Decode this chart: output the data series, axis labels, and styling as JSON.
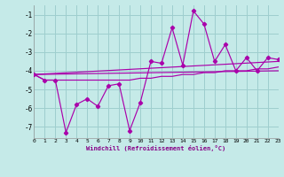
{
  "xlabel": "Windchill (Refroidissement éolien,°C)",
  "bg_color": "#c5eae8",
  "grid_color": "#9ecece",
  "line_color": "#aa00aa",
  "x_min": 0,
  "x_max": 23,
  "y_min": -7.6,
  "y_max": -0.5,
  "yticks": [
    -7,
    -6,
    -5,
    -4,
    -3,
    -2,
    -1
  ],
  "xticks": [
    0,
    1,
    2,
    3,
    4,
    5,
    6,
    7,
    8,
    9,
    10,
    11,
    12,
    13,
    14,
    15,
    16,
    17,
    18,
    19,
    20,
    21,
    22,
    23
  ],
  "series1_x": [
    0,
    1,
    2,
    3,
    4,
    5,
    6,
    7,
    8,
    9,
    10,
    11,
    12,
    13,
    14,
    15,
    16,
    17,
    18,
    19,
    20,
    21,
    22,
    23
  ],
  "series1_y": [
    -4.2,
    -4.5,
    -4.5,
    -7.3,
    -5.8,
    -5.5,
    -5.9,
    -4.8,
    -4.7,
    -7.2,
    -5.7,
    -3.5,
    -3.6,
    -1.7,
    -3.7,
    -0.8,
    -1.5,
    -3.5,
    -2.6,
    -4.0,
    -3.3,
    -4.0,
    -3.3,
    -3.4
  ],
  "series2_x": [
    0,
    1,
    2,
    3,
    4,
    5,
    6,
    7,
    8,
    9,
    10,
    11,
    12,
    13,
    14,
    15,
    16,
    17,
    18,
    19,
    20,
    21,
    22,
    23
  ],
  "series2_y": [
    -4.2,
    -4.5,
    -4.5,
    -4.5,
    -4.5,
    -4.5,
    -4.5,
    -4.5,
    -4.5,
    -4.5,
    -4.4,
    -4.4,
    -4.3,
    -4.3,
    -4.2,
    -4.2,
    -4.1,
    -4.1,
    -4.0,
    -4.0,
    -4.0,
    -3.9,
    -3.9,
    -3.8
  ],
  "series3_x": [
    0,
    23
  ],
  "series3_y": [
    -4.2,
    -4.0
  ],
  "series4_x": [
    0,
    23
  ],
  "series4_y": [
    -4.2,
    -3.5
  ]
}
